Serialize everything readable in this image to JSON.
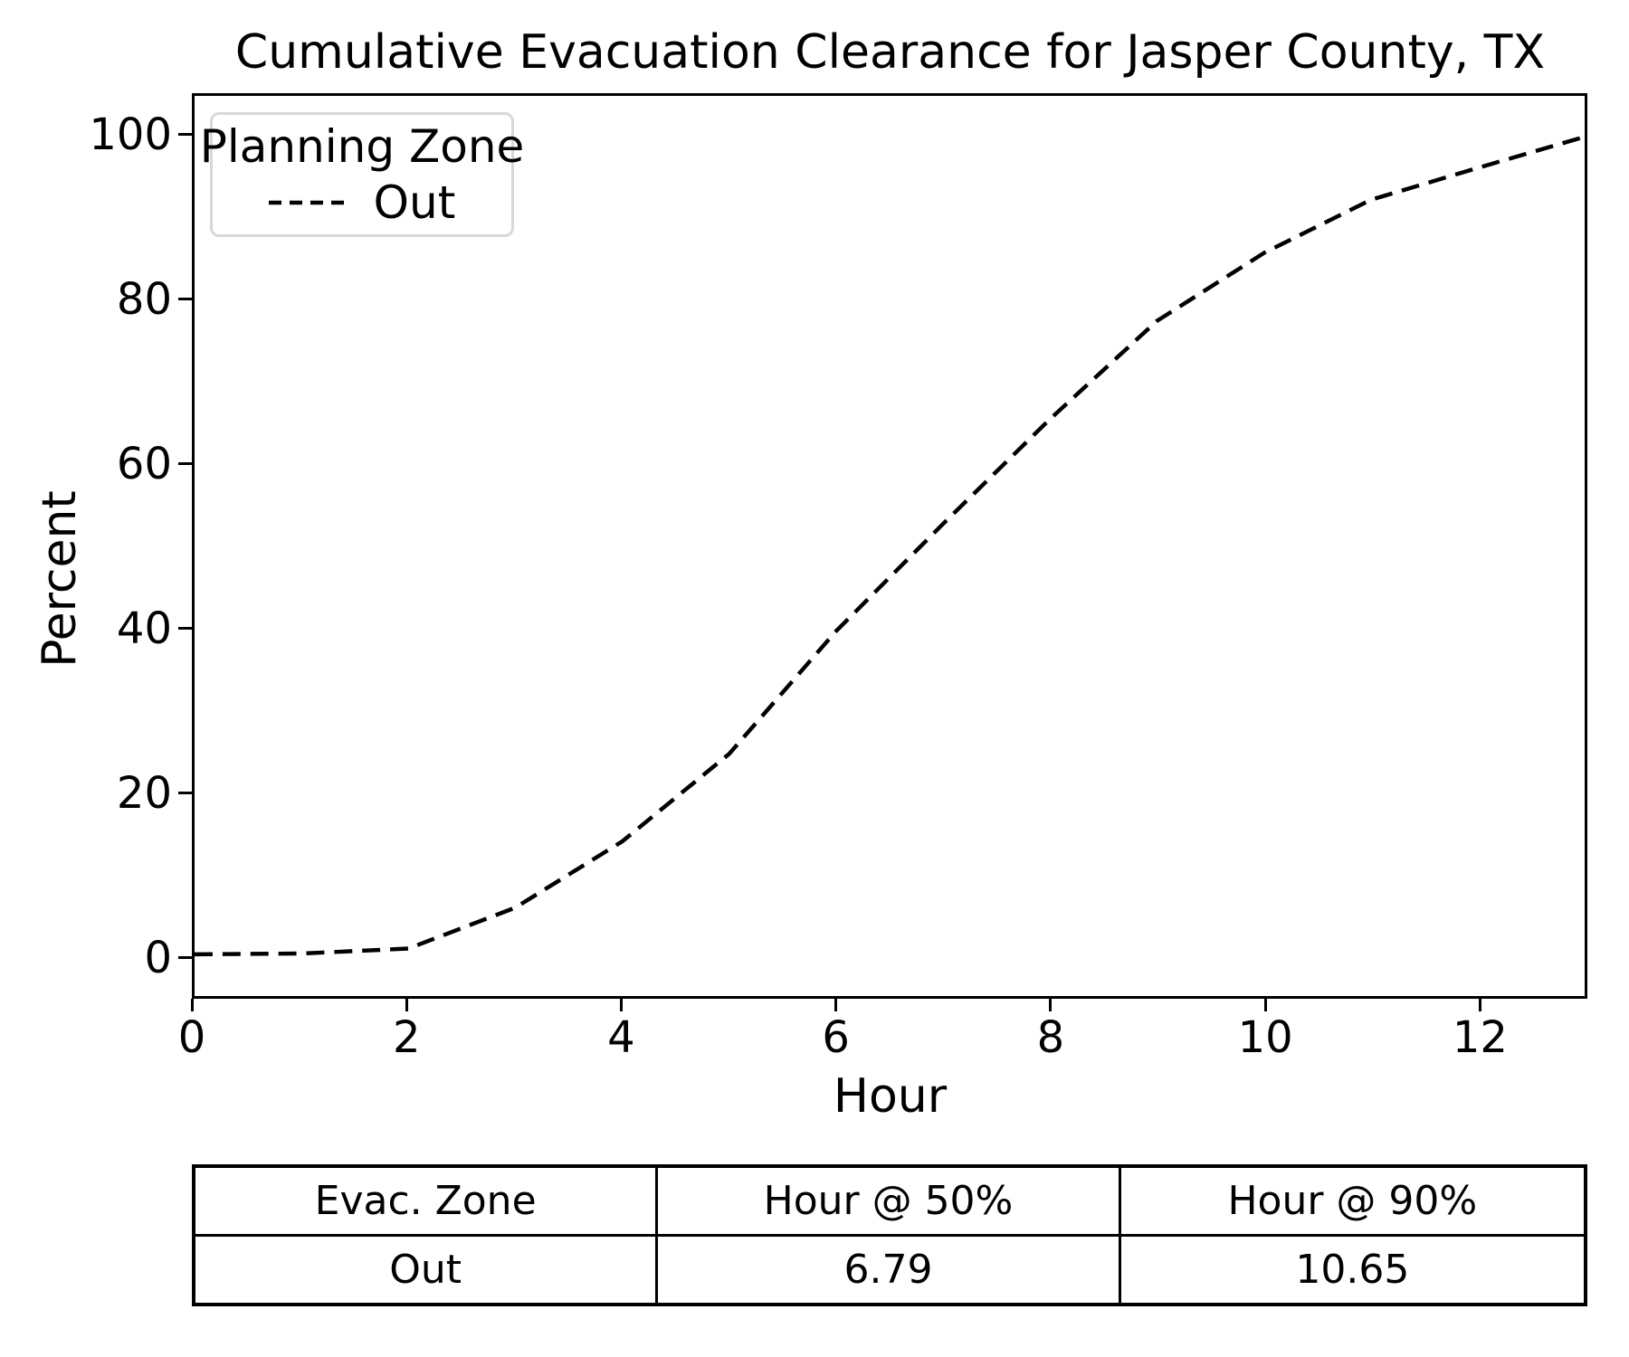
{
  "figure": {
    "background": "#ffffff",
    "text_color": "#000000"
  },
  "chart_data": {
    "type": "line",
    "title": "Cumulative Evacuation Clearance for Jasper County, TX",
    "xlabel": "Hour",
    "ylabel": "Percent",
    "xlim": [
      0,
      13
    ],
    "ylim": [
      -5,
      105
    ],
    "xticks": [
      0,
      2,
      4,
      6,
      8,
      10,
      12
    ],
    "yticks": [
      0,
      20,
      40,
      60,
      80,
      100
    ],
    "grid": false,
    "legend": {
      "title": "Planning Zone",
      "position": "upper-left",
      "entries": [
        {
          "label": "Out",
          "linestyle": "dashed",
          "color": "#000000"
        }
      ]
    },
    "series": [
      {
        "name": "Out",
        "linestyle": "dashed",
        "color": "#000000",
        "x": [
          0,
          1,
          2,
          3,
          4,
          5,
          6,
          7,
          8,
          9,
          10,
          11,
          12,
          13
        ],
        "y": [
          0.1,
          0.2,
          0.8,
          5.8,
          13.9,
          24.6,
          39.6,
          52.7,
          65.5,
          77.5,
          85.8,
          92.3,
          96.2,
          100.0
        ]
      }
    ]
  },
  "summary_table": {
    "headers": [
      "Evac. Zone",
      "Hour @ 50%",
      "Hour @ 90%"
    ],
    "rows": [
      [
        "Out",
        "6.79",
        "10.65"
      ]
    ]
  }
}
